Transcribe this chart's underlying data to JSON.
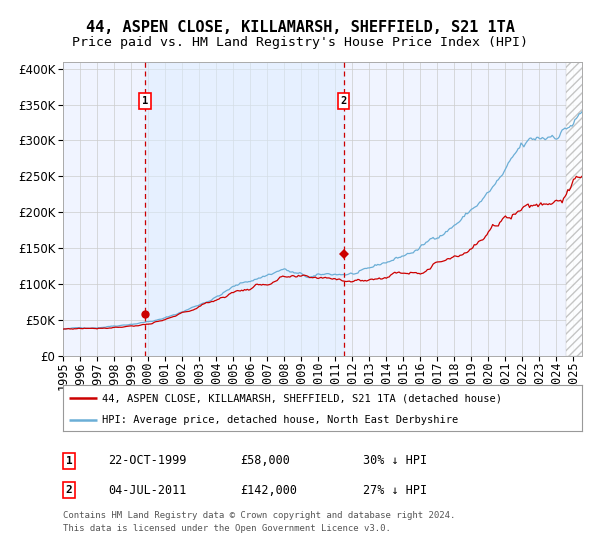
{
  "title": "44, ASPEN CLOSE, KILLAMARSH, SHEFFIELD, S21 1TA",
  "subtitle": "Price paid vs. HM Land Registry's House Price Index (HPI)",
  "legend_line1": "44, ASPEN CLOSE, KILLAMARSH, SHEFFIELD, S21 1TA (detached house)",
  "legend_line2": "HPI: Average price, detached house, North East Derbyshire",
  "footnote1": "Contains HM Land Registry data © Crown copyright and database right 2024.",
  "footnote2": "This data is licensed under the Open Government Licence v3.0.",
  "annotation1_label": "1",
  "annotation1_date": "22-OCT-1999",
  "annotation1_price": "£58,000",
  "annotation1_hpi": "30% ↓ HPI",
  "annotation2_label": "2",
  "annotation2_date": "04-JUL-2011",
  "annotation2_price": "£142,000",
  "annotation2_hpi": "27% ↓ HPI",
  "sale1_year": 1999.81,
  "sale1_value": 58000,
  "sale2_year": 2011.5,
  "sale2_value": 142000,
  "hpi_color": "#6baed6",
  "hpi_fill_color": "#ddeeff",
  "price_color": "#cc0000",
  "dashed_line_color": "#cc0000",
  "plot_bg_color": "#f0f4ff",
  "grid_color": "#cccccc",
  "ylim": [
    0,
    410000
  ],
  "xlim_start": 1995.0,
  "xlim_end": 2025.5,
  "title_fontsize": 11,
  "subtitle_fontsize": 9.5,
  "tick_fontsize": 8.5
}
